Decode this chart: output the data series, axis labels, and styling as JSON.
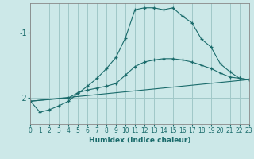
{
  "xlabel": "Humidex (Indice chaleur)",
  "bg_color": "#cce8e8",
  "grid_color": "#a0c8c8",
  "line_color": "#1a6b6b",
  "xlim": [
    0,
    23
  ],
  "ylim": [
    -2.4,
    -0.55
  ],
  "yticks": [
    -2,
    -1
  ],
  "xticks": [
    0,
    1,
    2,
    3,
    4,
    5,
    6,
    7,
    8,
    9,
    10,
    11,
    12,
    13,
    14,
    15,
    16,
    17,
    18,
    19,
    20,
    21,
    22,
    23
  ],
  "line1_x": [
    0,
    1,
    2,
    3,
    4,
    5,
    6,
    7,
    8,
    9,
    10,
    11,
    12,
    13,
    14,
    15,
    16,
    17,
    18,
    19,
    20,
    21,
    22,
    23
  ],
  "line1_y": [
    -2.05,
    -2.22,
    -2.18,
    -2.12,
    -2.05,
    -1.93,
    -1.82,
    -1.7,
    -1.55,
    -1.38,
    -1.08,
    -0.65,
    -0.62,
    -0.62,
    -0.65,
    -0.62,
    -0.75,
    -0.85,
    -1.1,
    -1.22,
    -1.48,
    -1.6,
    -1.7,
    -1.72
  ],
  "line2_x": [
    0,
    4,
    5,
    6,
    7,
    8,
    9,
    10,
    11,
    12,
    13,
    14,
    15,
    16,
    17,
    18,
    19,
    20,
    21,
    22,
    23
  ],
  "line2_y": [
    -2.05,
    -2.0,
    -1.92,
    -1.88,
    -1.85,
    -1.82,
    -1.78,
    -1.65,
    -1.52,
    -1.45,
    -1.42,
    -1.4,
    -1.4,
    -1.42,
    -1.45,
    -1.5,
    -1.55,
    -1.62,
    -1.68,
    -1.7,
    -1.72
  ],
  "line3_x": [
    0,
    23
  ],
  "line3_y": [
    -2.05,
    -1.72
  ]
}
